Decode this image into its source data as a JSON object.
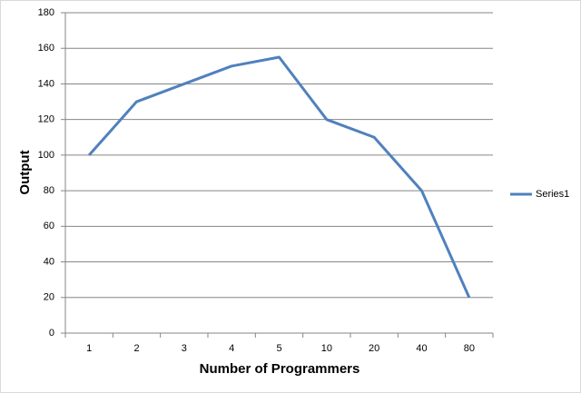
{
  "chart_data": {
    "type": "line",
    "x_label": "Number of Programmers",
    "y_label": "Output",
    "categories": [
      "1",
      "2",
      "3",
      "4",
      "5",
      "10",
      "20",
      "40",
      "80"
    ],
    "series": [
      {
        "name": "Series1",
        "color": "#4f81bd",
        "values": [
          100,
          130,
          140,
          150,
          155,
          120,
          110,
          80,
          20
        ]
      }
    ],
    "ylim": [
      0,
      180
    ],
    "yticks": [
      0,
      20,
      40,
      60,
      80,
      100,
      120,
      140,
      160,
      180
    ],
    "grid": true,
    "legend": "right"
  }
}
